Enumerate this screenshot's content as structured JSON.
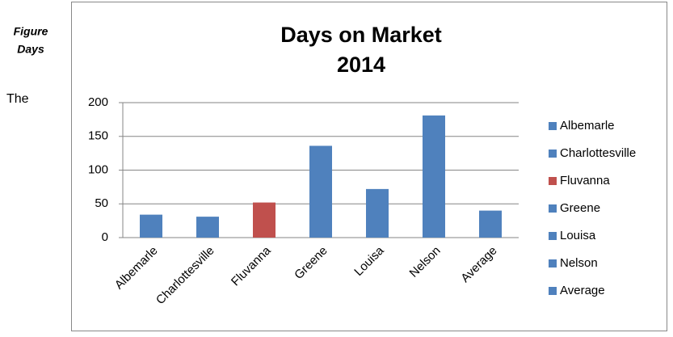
{
  "side_text": {
    "figure": "Figure",
    "days": "Days",
    "body": "The"
  },
  "chart_data": {
    "type": "bar",
    "title": [
      "Days on Market",
      "2014"
    ],
    "categories": [
      "Albemarle",
      "Charlottesville",
      "Fluvanna",
      "Greene",
      "Louisa",
      "Nelson",
      "Average"
    ],
    "values": [
      34,
      31,
      52,
      136,
      72,
      181,
      40
    ],
    "colors": [
      "#4f81bd",
      "#4f81bd",
      "#c0504d",
      "#4f81bd",
      "#4f81bd",
      "#4f81bd",
      "#4f81bd"
    ],
    "ylim": [
      0,
      200
    ],
    "yticks": [
      0,
      50,
      100,
      150,
      200
    ],
    "grid": true,
    "legend": "right"
  }
}
